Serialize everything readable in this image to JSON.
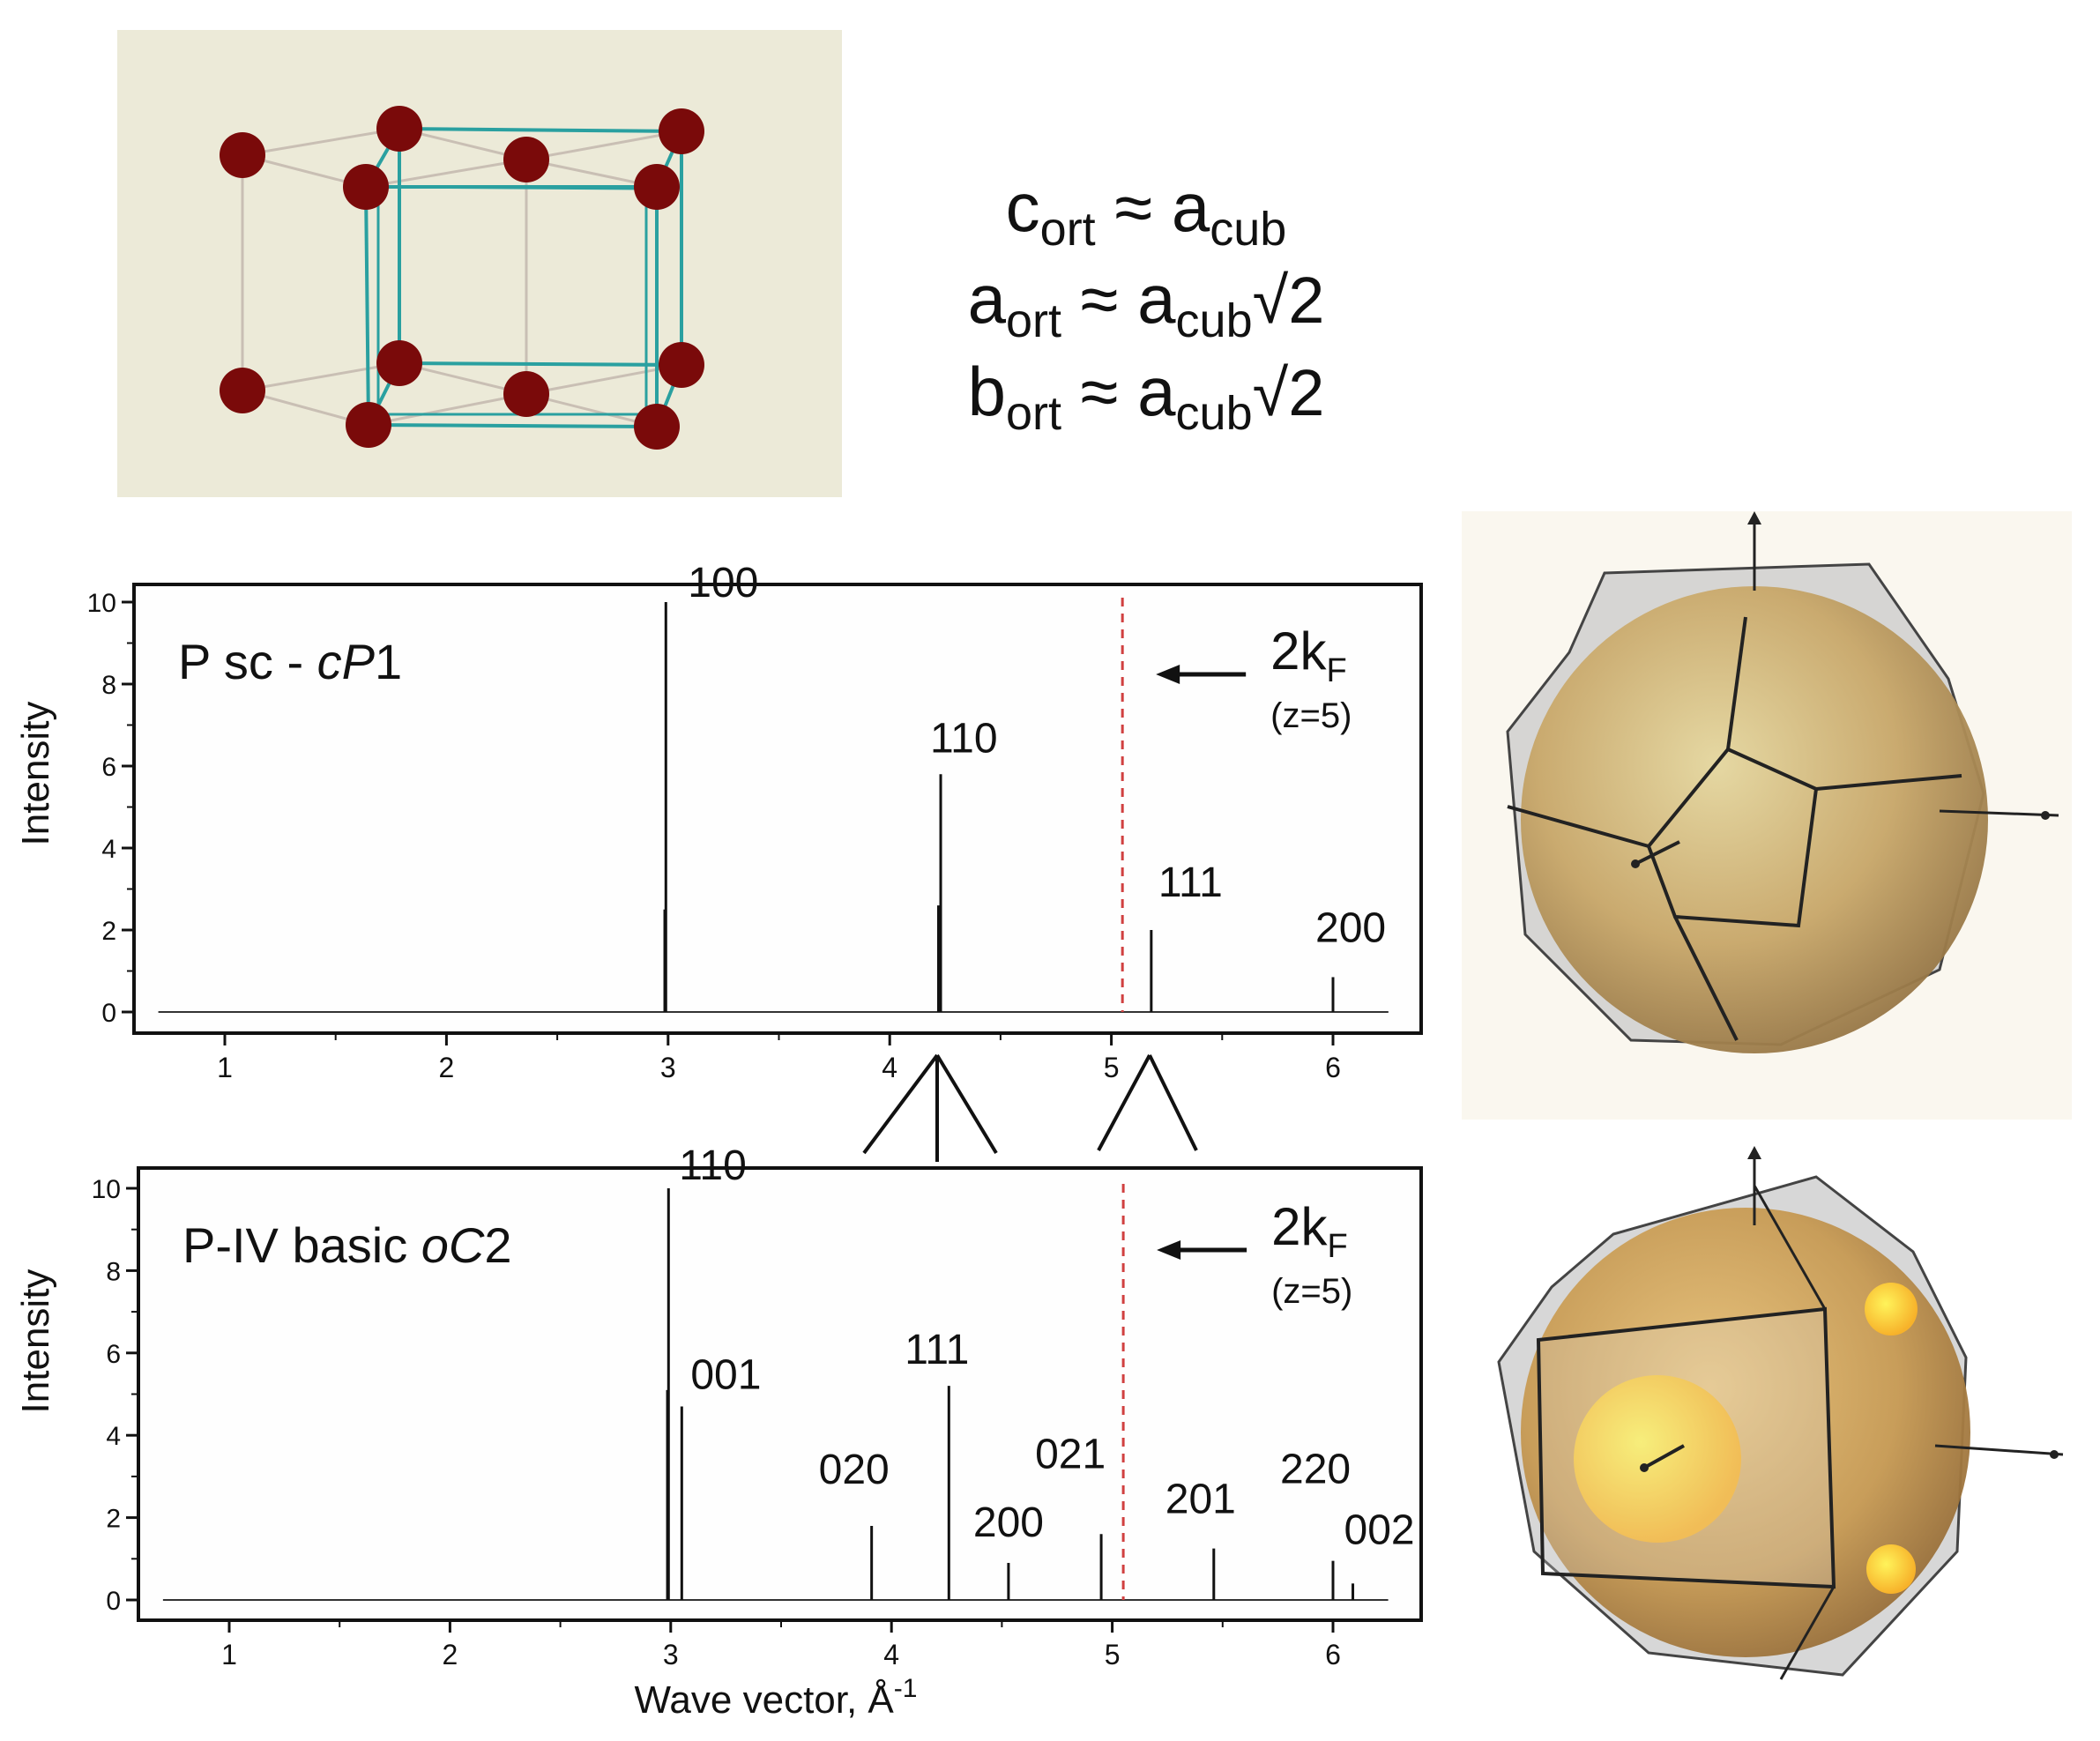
{
  "formulas": [
    {
      "lhs": "c",
      "lhs_sub": "ort",
      "op": "≈",
      "rhs": "a",
      "rhs_sub": "cub",
      "factor": ""
    },
    {
      "lhs": "a",
      "lhs_sub": "ort",
      "op": "≈",
      "rhs": "a",
      "rhs_sub": "cub",
      "factor": "√2"
    },
    {
      "lhs": "b",
      "lhs_sub": "ort",
      "op": "≈",
      "rhs": "a",
      "rhs_sub": "cub",
      "factor": "√2"
    }
  ],
  "colors": {
    "atom": "#7a0a0a",
    "crystal_bg": "#ecead8",
    "cell_edge": "#2aa0a0",
    "dashed_line": "#d04040",
    "sphere": "#d7a458",
    "highlight": "#ffd83a"
  },
  "chart_data": [
    {
      "type": "bar",
      "title_main": "P  sc - ",
      "title_italic": "cP",
      "title_tail": "1",
      "ylabel": "Intensity",
      "xlabel": "",
      "xlim": [
        0.7,
        6.25
      ],
      "ylim": [
        0,
        10
      ],
      "xticks": [
        "1",
        "2",
        "3",
        "4",
        "5",
        "6"
      ],
      "yticks": [
        "0",
        "2",
        "4",
        "6",
        "8",
        "10"
      ],
      "peaks": [
        {
          "x": 2.99,
          "y": 10.0,
          "label": "100"
        },
        {
          "x": 2.985,
          "y": 2.5,
          "label": ""
        },
        {
          "x": 4.23,
          "y": 5.8,
          "label": "110"
        },
        {
          "x": 4.22,
          "y": 2.6,
          "label": ""
        },
        {
          "x": 5.18,
          "y": 2.0,
          "label": "111"
        },
        {
          "x": 6.0,
          "y": 0.85,
          "label": "200"
        }
      ],
      "kf_x": 5.05,
      "kf_label": "2k",
      "kf_sub": "F",
      "kf_note": "(z=5)"
    },
    {
      "type": "bar",
      "title_main": "P-IV basic ",
      "title_italic": "oC",
      "title_tail": "2",
      "ylabel": "Intensity",
      "xlabel": "Wave vector, Å",
      "xlabel_sup": "-1",
      "xlim": [
        0.7,
        6.25
      ],
      "ylim": [
        0,
        10
      ],
      "xticks": [
        "1",
        "2",
        "3",
        "4",
        "5",
        "6"
      ],
      "yticks": [
        "0",
        "2",
        "4",
        "6",
        "8",
        "10"
      ],
      "peaks": [
        {
          "x": 2.99,
          "y": 10.0,
          "label": "110"
        },
        {
          "x": 2.985,
          "y": 5.1,
          "label": ""
        },
        {
          "x": 3.05,
          "y": 4.7,
          "label": "001"
        },
        {
          "x": 3.91,
          "y": 1.8,
          "label": "020"
        },
        {
          "x": 4.26,
          "y": 5.2,
          "label": "111"
        },
        {
          "x": 4.53,
          "y": 0.9,
          "label": "200"
        },
        {
          "x": 4.95,
          "y": 1.6,
          "label": "021"
        },
        {
          "x": 5.46,
          "y": 1.25,
          "label": "201"
        },
        {
          "x": 6.0,
          "y": 0.95,
          "label": "220"
        },
        {
          "x": 6.09,
          "y": 0.4,
          "label": "002"
        }
      ],
      "kf_x": 5.05,
      "kf_label": "2k",
      "kf_sub": "F",
      "kf_note": "(z=5)"
    }
  ]
}
